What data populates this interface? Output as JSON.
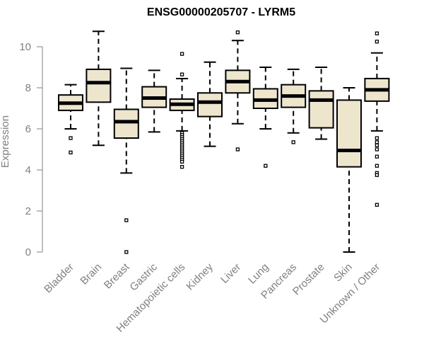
{
  "chart_data": {
    "type": "box",
    "title": "ENSG00000205707 - LYRM5",
    "xlabel": "",
    "ylabel": "Expression",
    "ylim": [
      0,
      10.8
    ],
    "yticks": [
      0,
      2,
      4,
      6,
      8,
      10
    ],
    "grid": false,
    "legend": "none",
    "colors": {
      "box_fill": "#ede6cc",
      "stroke": "#000000",
      "axis_text": "#808080"
    },
    "categories": [
      "Bladder",
      "Brain",
      "Breast",
      "Gastric",
      "Hematopoietic cells",
      "Kidney",
      "Liver",
      "Lung",
      "Pancreas",
      "Prostate",
      "Skin",
      "Unknown / Other"
    ],
    "boxes": [
      {
        "category": "Bladder",
        "whisker_low": 6.0,
        "q1": 6.9,
        "median": 7.25,
        "q3": 7.65,
        "whisker_high": 8.15,
        "outliers": [
          5.55,
          4.85
        ]
      },
      {
        "category": "Brain",
        "whisker_low": 5.2,
        "q1": 7.3,
        "median": 8.25,
        "q3": 8.9,
        "whisker_high": 10.75,
        "outliers": []
      },
      {
        "category": "Breast",
        "whisker_low": 3.85,
        "q1": 5.55,
        "median": 6.35,
        "q3": 6.95,
        "whisker_high": 8.95,
        "outliers": [
          1.55,
          0.0
        ]
      },
      {
        "category": "Gastric",
        "whisker_low": 5.85,
        "q1": 7.05,
        "median": 7.5,
        "q3": 8.05,
        "whisker_high": 8.85,
        "outliers": []
      },
      {
        "category": "Hematopoietic cells",
        "whisker_low": 5.9,
        "q1": 6.9,
        "median": 7.2,
        "q3": 7.45,
        "whisker_high": 8.45,
        "outliers": [
          9.65,
          8.65,
          5.8,
          5.7,
          5.6,
          5.5,
          5.4,
          5.3,
          5.2,
          5.1,
          5.0,
          4.9,
          4.8,
          4.7,
          4.6,
          4.5,
          4.4,
          4.15
        ]
      },
      {
        "category": "Kidney",
        "whisker_low": 5.15,
        "q1": 6.6,
        "median": 7.3,
        "q3": 7.75,
        "whisker_high": 9.25,
        "outliers": []
      },
      {
        "category": "Liver",
        "whisker_low": 6.25,
        "q1": 7.75,
        "median": 8.3,
        "q3": 8.85,
        "whisker_high": 10.3,
        "outliers": [
          10.7,
          5.0
        ]
      },
      {
        "category": "Lung",
        "whisker_low": 6.0,
        "q1": 7.0,
        "median": 7.4,
        "q3": 7.95,
        "whisker_high": 9.0,
        "outliers": [
          4.2
        ]
      },
      {
        "category": "Pancreas",
        "whisker_low": 5.8,
        "q1": 7.05,
        "median": 7.6,
        "q3": 8.15,
        "whisker_high": 8.9,
        "outliers": [
          5.35
        ]
      },
      {
        "category": "Prostate",
        "whisker_low": 5.5,
        "q1": 6.05,
        "median": 7.4,
        "q3": 7.85,
        "whisker_high": 9.0,
        "outliers": []
      },
      {
        "category": "Skin",
        "whisker_low": 0.0,
        "q1": 4.15,
        "median": 4.95,
        "q3": 7.4,
        "whisker_high": 8.0,
        "outliers": []
      },
      {
        "category": "Unknown / Other",
        "whisker_low": 5.9,
        "q1": 7.35,
        "median": 7.9,
        "q3": 8.45,
        "whisker_high": 9.7,
        "outliers": [
          10.65,
          10.25,
          5.55,
          5.35,
          5.2,
          5.0,
          4.65,
          4.2,
          3.85,
          3.75,
          2.3
        ]
      }
    ]
  }
}
